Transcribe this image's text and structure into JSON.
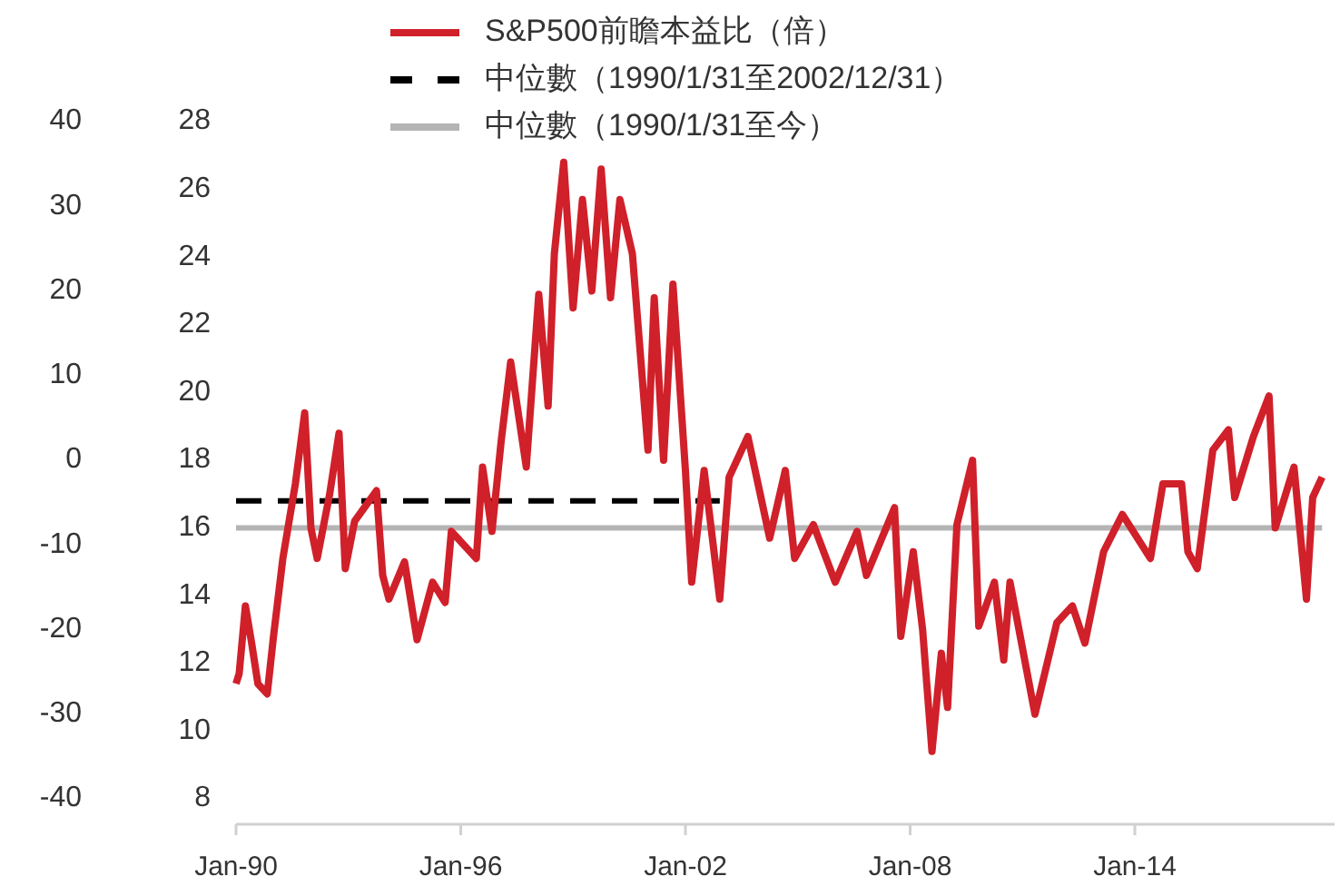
{
  "chart_data": {
    "type": "line",
    "legend": "top",
    "grid": false,
    "xlim": [
      "1990-01",
      "2019-05"
    ],
    "xticks": [
      {
        "value": "1990-01",
        "label": "Jan-90"
      },
      {
        "value": "1996-01",
        "label": "Jan-96"
      },
      {
        "value": "2002-01",
        "label": "Jan-02"
      },
      {
        "value": "2008-01",
        "label": "Jan-08"
      },
      {
        "value": "2014-01",
        "label": "Jan-14"
      }
    ],
    "ylim": [
      7.25,
      28
    ],
    "yticks": [
      8,
      10,
      12,
      14,
      16,
      18,
      20,
      22,
      24,
      26,
      28
    ],
    "y2lim": [
      -43,
      40
    ],
    "y2ticks": [
      -40,
      -30,
      -20,
      -10,
      0,
      10,
      20,
      30,
      40
    ],
    "series": [
      {
        "name": "S&P500前瞻本益比（倍）",
        "color": "#d0202a",
        "line_style": "solid",
        "x": [
          "1990-01",
          "1990-02",
          "1990-04",
          "1990-06",
          "1990-08",
          "1990-11",
          "1991-01",
          "1991-04",
          "1991-08",
          "1991-11",
          "1992-01",
          "1992-03",
          "1992-07",
          "1992-10",
          "1992-12",
          "1993-03",
          "1993-10",
          "1993-12",
          "1994-02",
          "1994-07",
          "1994-11",
          "1995-04",
          "1995-08",
          "1995-10",
          "1996-06",
          "1996-08",
          "1996-11",
          "1997-02",
          "1997-05",
          "1997-10",
          "1998-02",
          "1998-05",
          "1998-07",
          "1998-10",
          "1999-01",
          "1999-04",
          "1999-07",
          "1999-10",
          "2000-01",
          "2000-04",
          "2000-08",
          "2001-01",
          "2001-03",
          "2001-06",
          "2001-09",
          "2002-01",
          "2002-03",
          "2002-07",
          "2002-12",
          "2003-03",
          "2003-09",
          "2004-04",
          "2004-09",
          "2004-12",
          "2005-06",
          "2006-01",
          "2006-08",
          "2006-11",
          "2007-08",
          "2007-10",
          "2008-02",
          "2008-05",
          "2008-08",
          "2008-11",
          "2009-01",
          "2009-04",
          "2009-09",
          "2009-11",
          "2010-04",
          "2010-07",
          "2010-09",
          "2011-05",
          "2011-12",
          "2012-05",
          "2012-09",
          "2013-03",
          "2013-09",
          "2014-06",
          "2014-10",
          "2015-04",
          "2015-06",
          "2015-09",
          "2016-02",
          "2016-07",
          "2016-09",
          "2017-03",
          "2017-08",
          "2017-10",
          "2018-04",
          "2018-08",
          "2018-10",
          "2019-01"
        ],
        "values": [
          11.4,
          11.7,
          13.7,
          12.6,
          11.4,
          11.1,
          12.8,
          15.1,
          17.3,
          19.4,
          16.0,
          15.1,
          17.0,
          18.8,
          14.8,
          16.2,
          17.1,
          14.6,
          13.9,
          15.0,
          12.7,
          14.4,
          13.8,
          15.9,
          15.1,
          17.8,
          15.9,
          18.6,
          20.9,
          17.8,
          22.9,
          19.6,
          24.1,
          26.8,
          22.5,
          25.7,
          23.0,
          26.6,
          22.8,
          25.7,
          24.1,
          18.3,
          22.8,
          18.0,
          23.2,
          17.7,
          14.4,
          17.7,
          13.9,
          17.5,
          18.7,
          15.7,
          17.7,
          15.1,
          16.1,
          14.4,
          15.9,
          14.6,
          16.6,
          12.8,
          15.3,
          13.0,
          9.4,
          12.3,
          10.7,
          16.1,
          18.0,
          13.1,
          14.4,
          12.1,
          14.4,
          10.5,
          13.2,
          13.7,
          12.6,
          15.3,
          16.4,
          15.1,
          17.3,
          17.3,
          15.3,
          14.8,
          18.3,
          18.9,
          16.9,
          18.7,
          19.9,
          16.0,
          17.8,
          13.9,
          16.9,
          17.5
        ]
      },
      {
        "name": "中位數（1990/1/31至2002/12/31）",
        "color": "#000000",
        "line_style": "dashed",
        "x": [
          "1990-01",
          "2002-12"
        ],
        "values": [
          16.8,
          16.8
        ]
      },
      {
        "name": "中位數（1990/1/31至今）",
        "color": "#b4b4b4",
        "line_style": "solid",
        "x": [
          "1990-01",
          "2019-01"
        ],
        "values": [
          16.0,
          16.0
        ]
      }
    ]
  }
}
